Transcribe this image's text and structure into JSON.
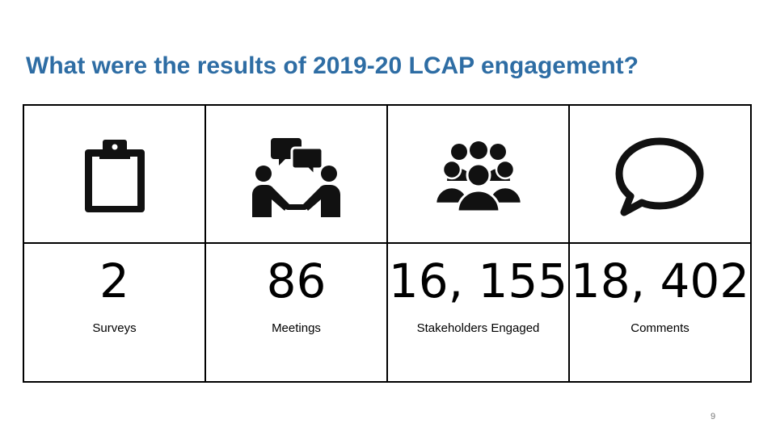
{
  "slide": {
    "title": "What were the results of 2019-20 LCAP engagement?",
    "page_number": "9",
    "accent_color": "#2e6da4"
  },
  "stats": [
    {
      "icon": "clipboard-icon",
      "value": "2",
      "label": "Surveys"
    },
    {
      "icon": "meeting-icon",
      "value": "86",
      "label": "Meetings"
    },
    {
      "icon": "people-group-icon",
      "value": "16, 155",
      "label": "Stakeholders Engaged"
    },
    {
      "icon": "speech-bubble-icon",
      "value": "18, 402",
      "label": "Comments"
    }
  ]
}
